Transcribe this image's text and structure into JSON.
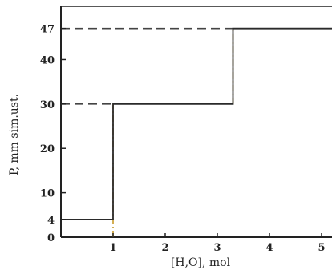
{
  "chart_data": {
    "type": "line",
    "xlabel": "[H,O], mol",
    "ylabel": "P, mm sim.ust.",
    "xlim": [
      0,
      5.2
    ],
    "ylim": [
      0,
      52
    ],
    "x_ticks": [
      "1",
      "2",
      "3",
      "4",
      "5"
    ],
    "y_ticks": [
      "0",
      "4",
      "10",
      "20",
      "30",
      "40",
      "47"
    ],
    "grid": false,
    "series": [
      {
        "step_points": [
          {
            "x": 0,
            "y": 4
          },
          {
            "x": 1,
            "y": 4
          },
          {
            "x": 1,
            "y": 30
          },
          {
            "x": 3.3,
            "y": 30
          },
          {
            "x": 3.3,
            "y": 47
          },
          {
            "x": 5.2,
            "y": 47
          }
        ]
      }
    ],
    "guide_lines": [
      {
        "style": "dashed",
        "from": {
          "x": 0,
          "y": 30
        },
        "to": {
          "x": 1,
          "y": 30
        }
      },
      {
        "style": "dashed",
        "from": {
          "x": 0,
          "y": 47
        },
        "to": {
          "x": 3.3,
          "y": 47
        }
      },
      {
        "style": "dash-dot",
        "from": {
          "x": 1,
          "y": 0
        },
        "to": {
          "x": 1,
          "y": 30
        }
      },
      {
        "style": "dash-dot",
        "from": {
          "x": 3.3,
          "y": 30
        },
        "to": {
          "x": 3.3,
          "y": 47
        }
      }
    ],
    "colors": {
      "line": "#2a2a2a",
      "guide": "#444444",
      "guide_accent": "#c89a2a"
    }
  }
}
